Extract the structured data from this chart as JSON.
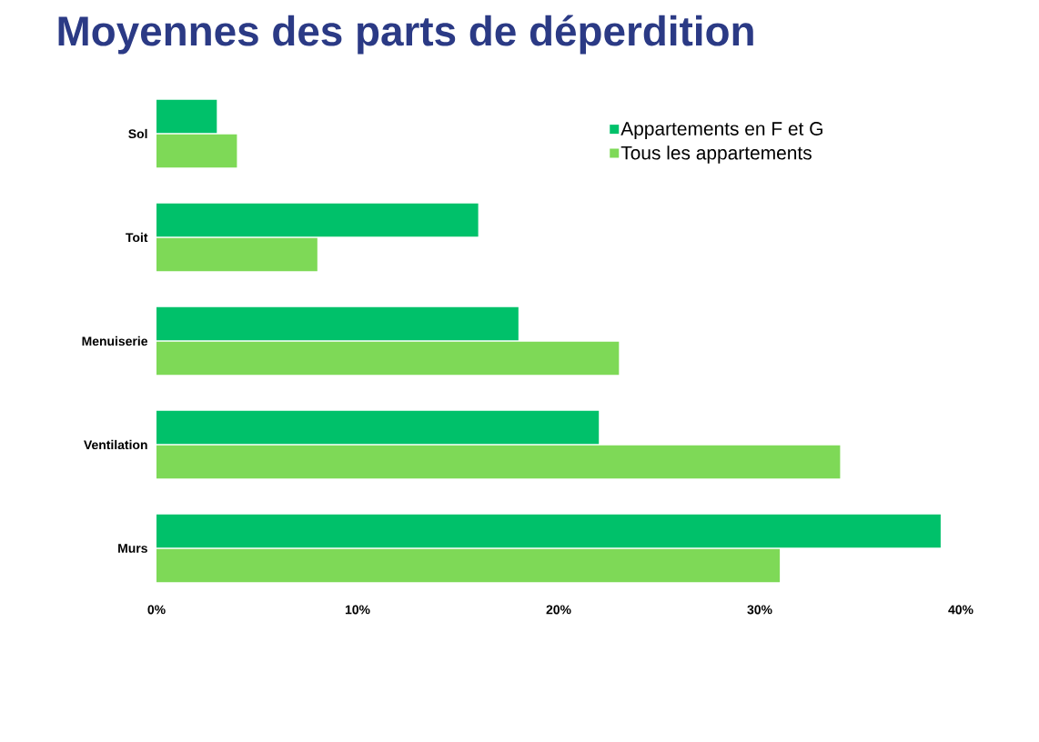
{
  "chart_data": {
    "type": "bar",
    "orientation": "horizontal",
    "title": "Moyennes des parts de déperdition",
    "categories": [
      "Sol",
      "Toit",
      "Menuiserie",
      "Ventilation",
      "Murs"
    ],
    "series": [
      {
        "name": "Appartements en F et G",
        "color": "#00c16a",
        "values": [
          3,
          16,
          18,
          22,
          39
        ]
      },
      {
        "name": "Tous les appartements",
        "color": "#7ed957",
        "values": [
          4,
          8,
          23,
          34,
          31
        ]
      }
    ],
    "xlim": [
      0,
      40
    ],
    "xticks": [
      {
        "value": 0,
        "label": "0%"
      },
      {
        "value": 10,
        "label": "10%"
      },
      {
        "value": 20,
        "label": "20%"
      },
      {
        "value": 30,
        "label": "30%"
      },
      {
        "value": 40,
        "label": "40%"
      }
    ],
    "grid": false,
    "legend": "top right"
  }
}
